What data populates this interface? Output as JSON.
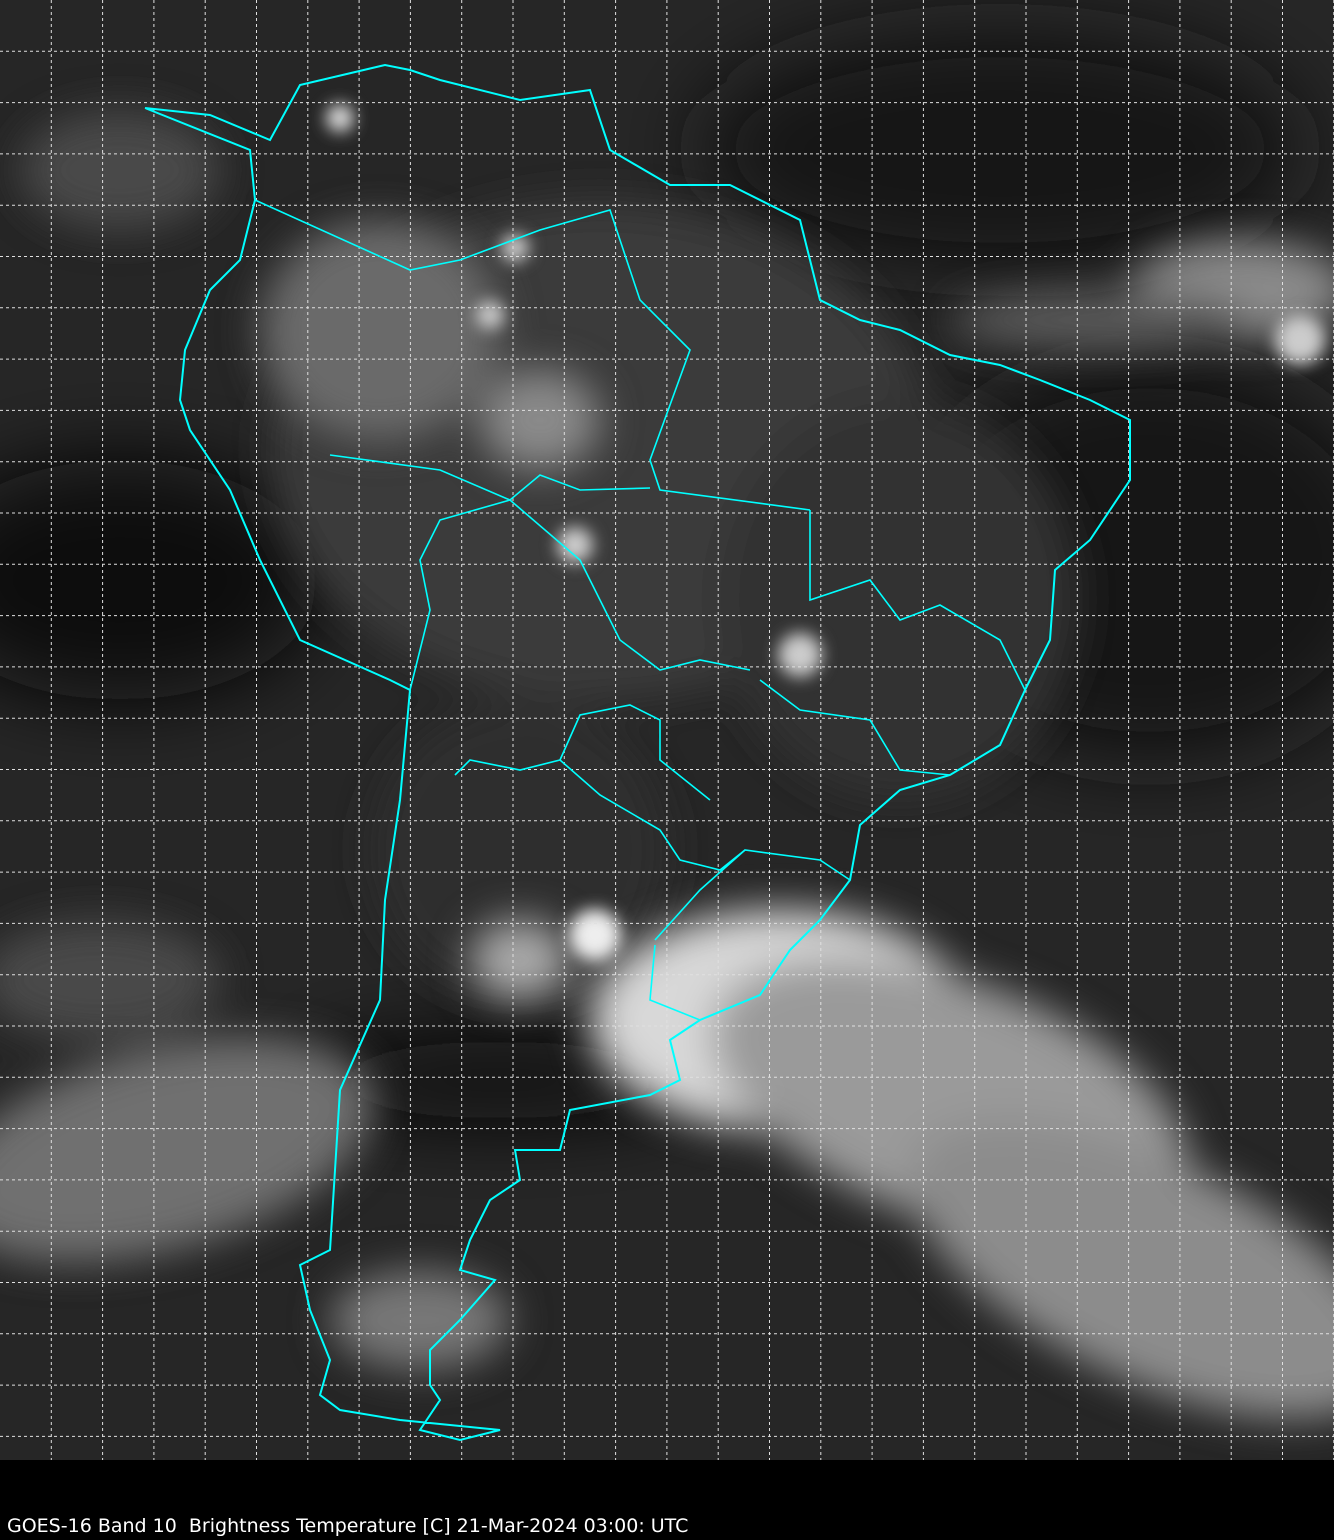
{
  "caption": "GOES-16 Band 10  Brightness Temperature [C] 21-Mar-2024 03:00: UTC",
  "map": {
    "satellite": "GOES-16",
    "band": "Band 10",
    "quantity": "Brightness Temperature [C]",
    "date": "21-Mar-2024",
    "time": "03:00: UTC",
    "colormap": "grayscale",
    "boundary_color": "#00ffff",
    "grid_color": "#e0e0e0",
    "grid_style": "dashed",
    "background_color": "#000000"
  }
}
